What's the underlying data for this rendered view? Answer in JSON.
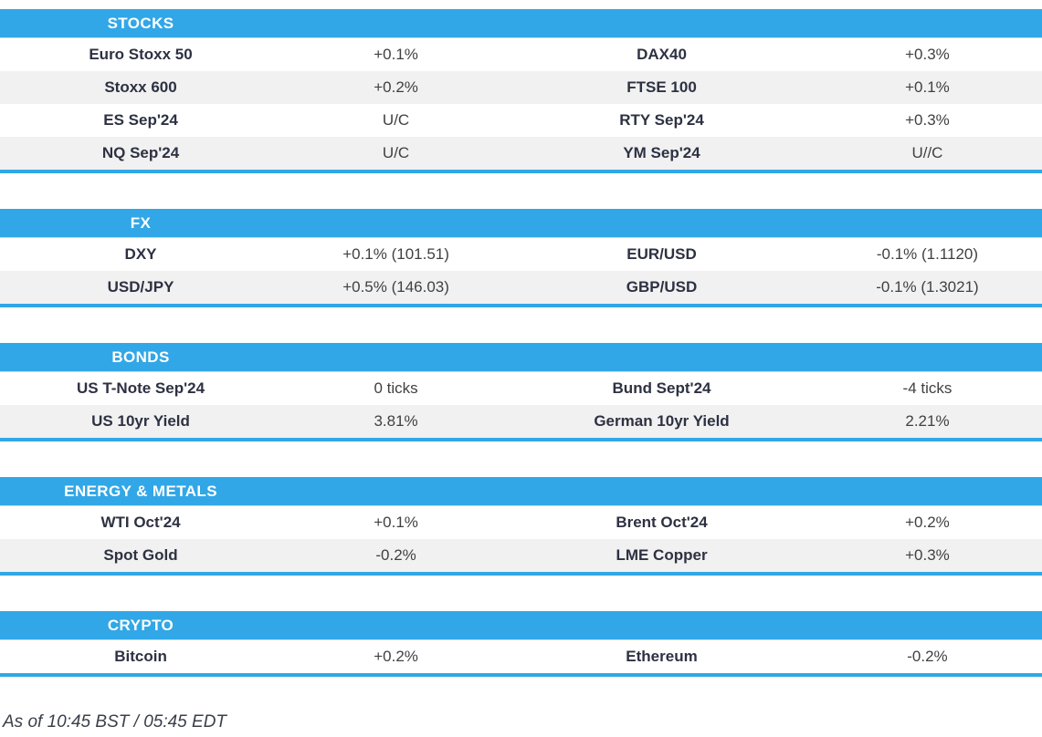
{
  "theme": {
    "accent": "#31a7e7",
    "stripe": "#f1f1f1",
    "name_color": "#2d3142",
    "value_color": "#414141"
  },
  "sections": [
    {
      "id": "stocks",
      "title": "STOCKS",
      "rows": [
        {
          "c0": "Euro Stoxx 50",
          "c1": "+0.1%",
          "c2": "DAX40",
          "c3": "+0.3%"
        },
        {
          "c0": "Stoxx 600",
          "c1": "+0.2%",
          "c2": "FTSE 100",
          "c3": "+0.1%"
        },
        {
          "c0": "ES Sep'24",
          "c1": "U/C",
          "c2": "RTY Sep'24",
          "c3": "+0.3%"
        },
        {
          "c0": "NQ Sep'24",
          "c1": "U/C",
          "c2": "YM Sep'24",
          "c3": "U//C"
        }
      ]
    },
    {
      "id": "fx",
      "title": "FX",
      "rows": [
        {
          "c0": "DXY",
          "c1": "+0.1% (101.51)",
          "c2": "EUR/USD",
          "c3": "-0.1% (1.1120)"
        },
        {
          "c0": "USD/JPY",
          "c1": "+0.5% (146.03)",
          "c2": "GBP/USD",
          "c3": "-0.1% (1.3021)"
        }
      ]
    },
    {
      "id": "bonds",
      "title": "BONDS",
      "rows": [
        {
          "c0": "US T-Note Sep'24",
          "c1": "0 ticks",
          "c2": "Bund Sept'24",
          "c3": "-4 ticks"
        },
        {
          "c0": "US 10yr Yield",
          "c1": "3.81%",
          "c2": "German 10yr Yield",
          "c3": "2.21%"
        }
      ]
    },
    {
      "id": "energy-metals",
      "title": "ENERGY & METALS",
      "rows": [
        {
          "c0": "WTI Oct'24",
          "c1": "+0.1%",
          "c2": "Brent Oct'24",
          "c3": "+0.2%"
        },
        {
          "c0": "Spot Gold",
          "c1": "-0.2%",
          "c2": "LME Copper",
          "c3": "+0.3%"
        }
      ]
    },
    {
      "id": "crypto",
      "title": "CRYPTO",
      "rows": [
        {
          "c0": "Bitcoin",
          "c1": "+0.2%",
          "c2": "Ethereum",
          "c3": "-0.2%"
        }
      ]
    }
  ],
  "footer": {
    "as_of": "As of 10:45 BST / 05:45 EDT"
  }
}
